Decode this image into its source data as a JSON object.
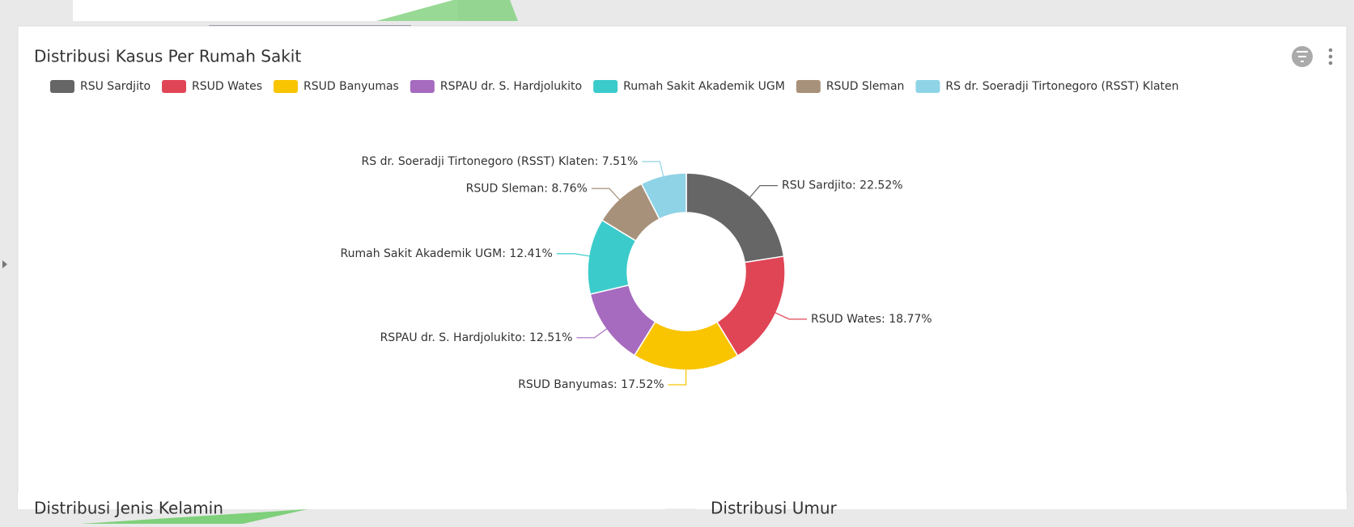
{
  "chart_data": {
    "type": "pie",
    "title": "Distribusi Kasus Per Rumah Sakit",
    "categories": [
      "RSU Sardjito",
      "RSUD Wates",
      "RSUD Banyumas",
      "RSPAU dr. S. Hardjolukito",
      "Rumah Sakit Akademik UGM",
      "RSUD Sleman",
      "RS dr. Soeradji Tirtonegoro (RSST) Klaten"
    ],
    "values": [
      22.52,
      18.77,
      17.52,
      12.51,
      12.41,
      8.76,
      7.51
    ],
    "value_labels": [
      "RSU Sardjito: 22.52%",
      "RSUD Wates: 18.77%",
      "RSUD Banyumas: 17.52%",
      "RSPAU dr. S. Hardjolukito: 12.51%",
      "Rumah Sakit Akademik UGM: 12.41%",
      "RSUD Sleman: 8.76%",
      "RS dr. Soeradji Tirtonegoro (RSST) Klaten: 7.51%"
    ],
    "colors": [
      "#666666",
      "#e04556",
      "#f9c400",
      "#a66bbe",
      "#3ccbcb",
      "#a8917a",
      "#8fd3e6"
    ],
    "legend": "top"
  },
  "other_panels": [
    "Distribusi Jenis Kelamin",
    "Distribusi Umur"
  ]
}
